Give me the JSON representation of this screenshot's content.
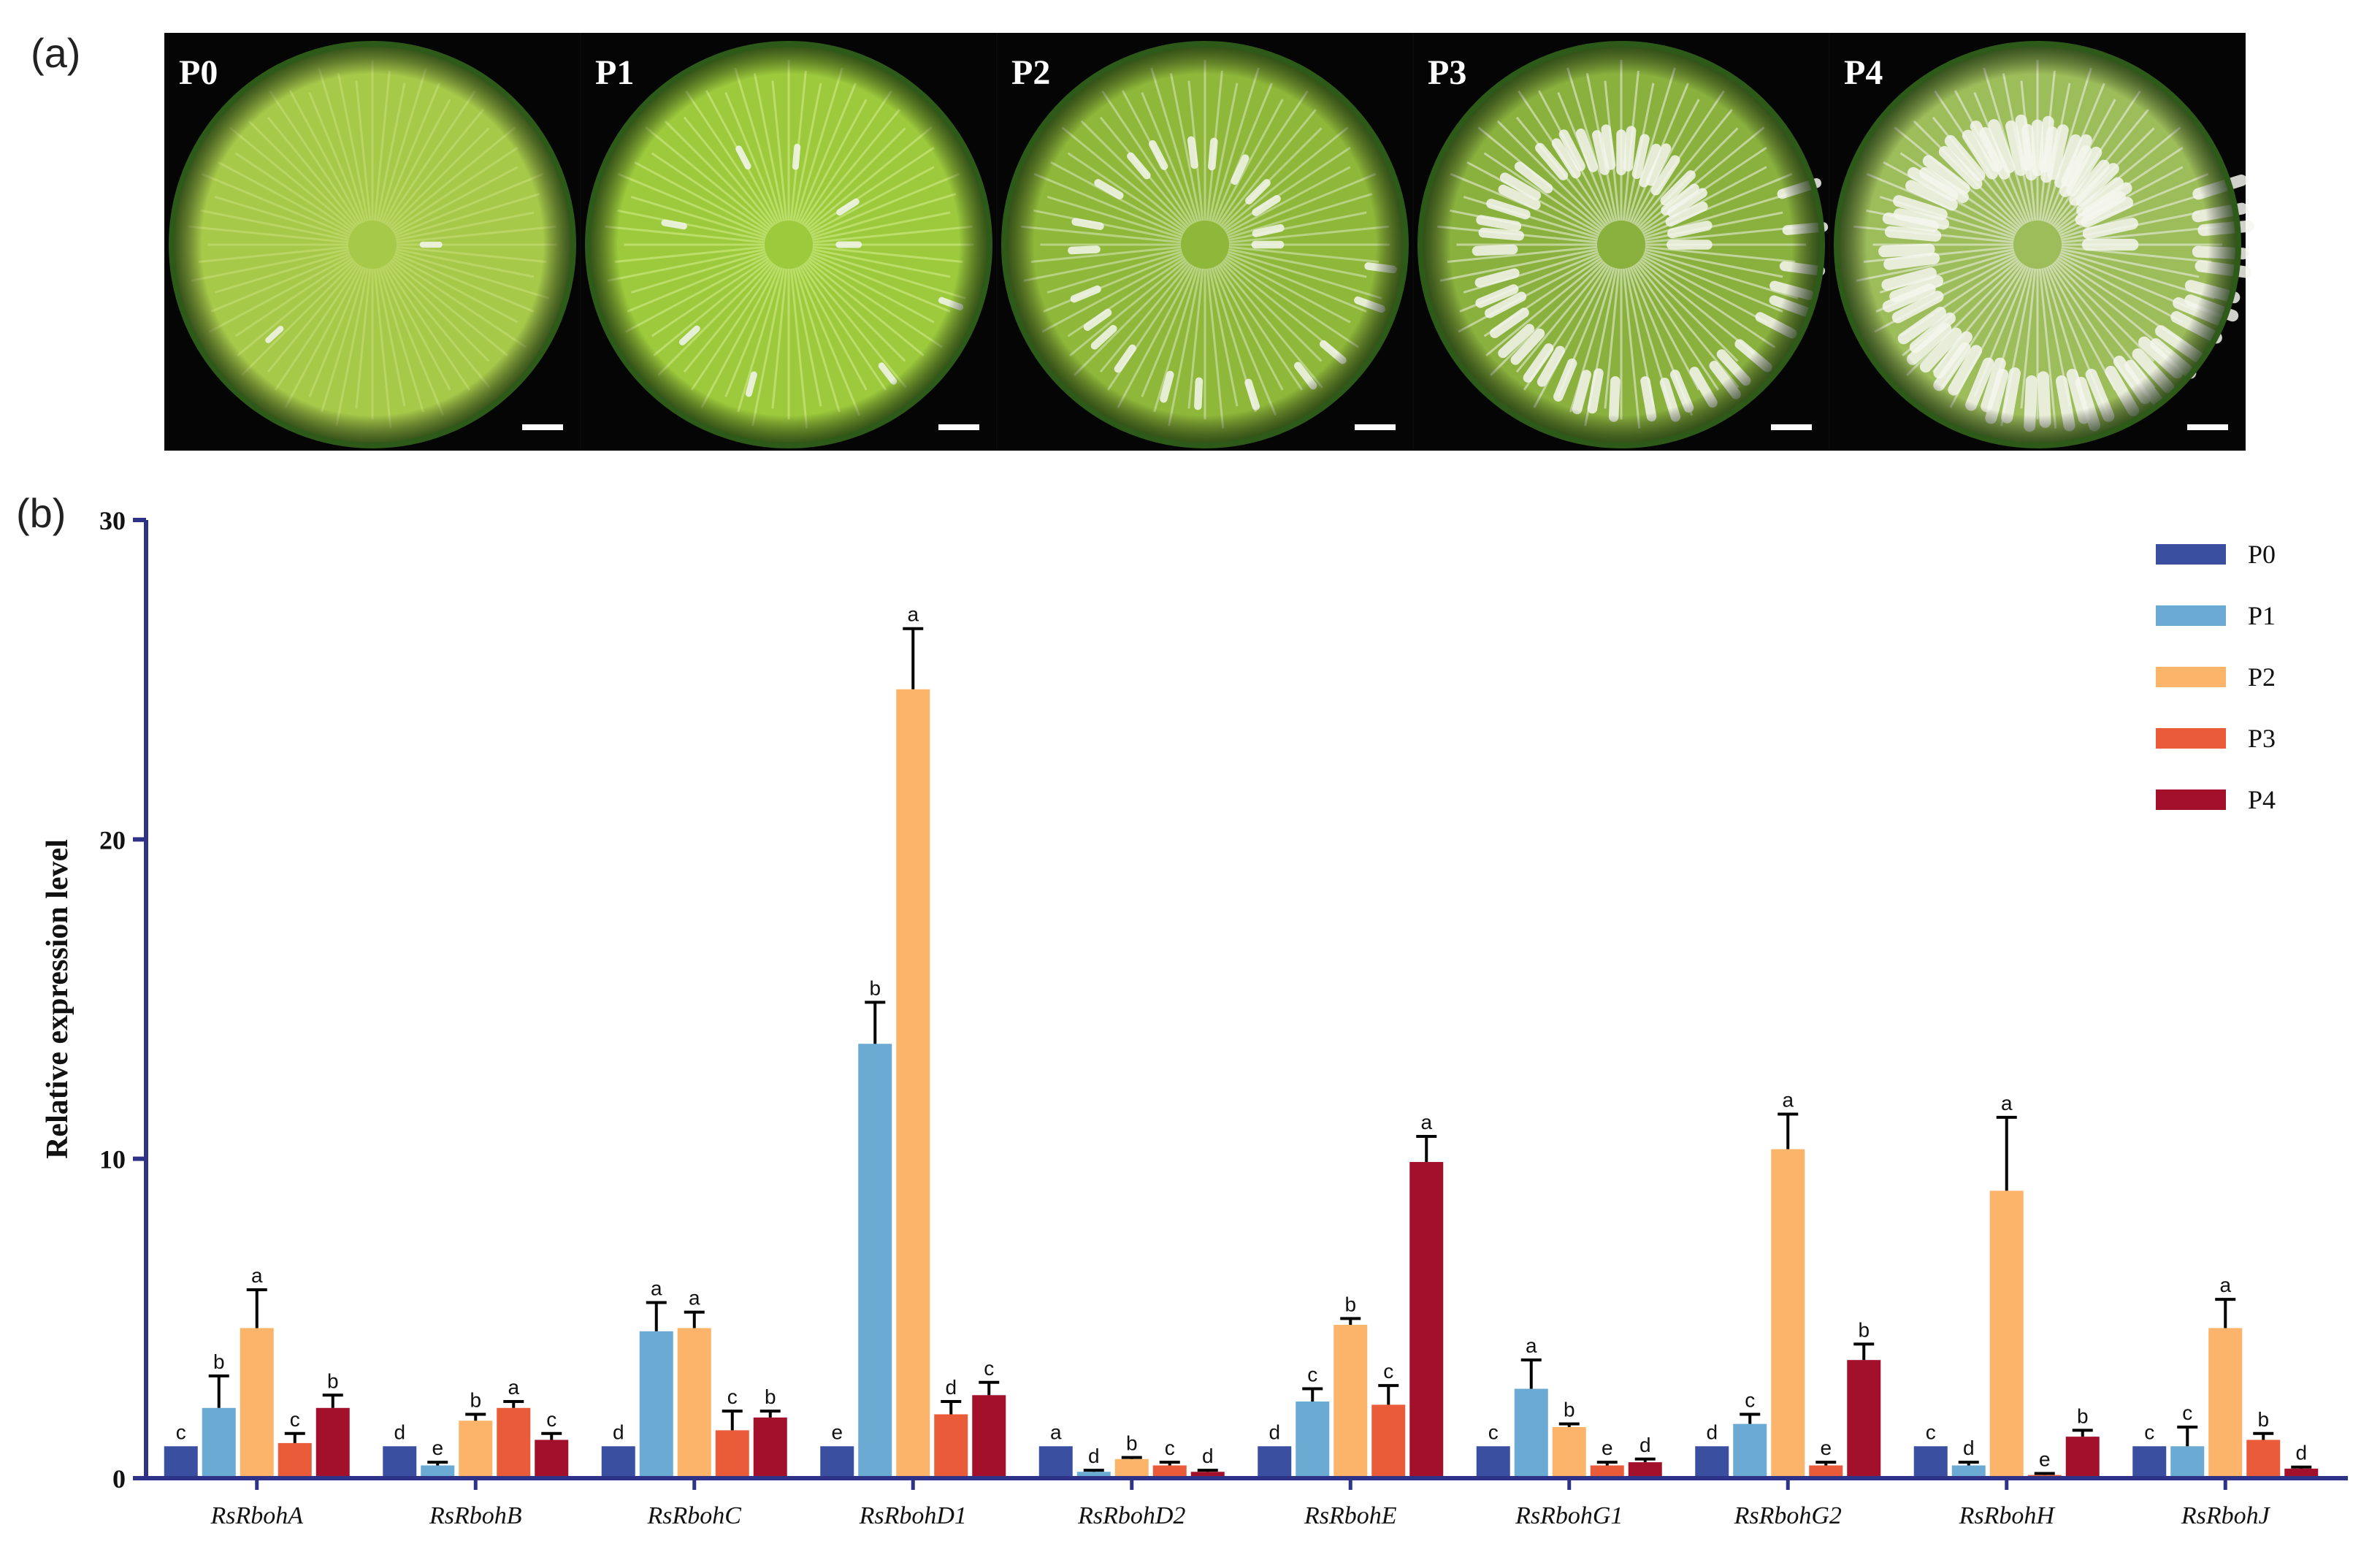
{
  "panel_a": {
    "label": "(a)",
    "photos": [
      {
        "label": "P0",
        "base": "#a6c94a",
        "accent": "#c8df7a",
        "white": 0.02
      },
      {
        "label": "P1",
        "base": "#9cca3c",
        "accent": "#d6ec8e",
        "white": 0.1
      },
      {
        "label": "P2",
        "base": "#8fb83a",
        "accent": "#d8e8c0",
        "white": 0.25
      },
      {
        "label": "P3",
        "base": "#8ab13e",
        "accent": "#eef2e6",
        "white": 0.55
      },
      {
        "label": "P4",
        "base": "#9dbd5a",
        "accent": "#f0f2ec",
        "white": 0.8
      }
    ]
  },
  "panel_b": {
    "label": "(b)"
  },
  "chart_data": {
    "type": "bar",
    "ylabel": "Relative expression level",
    "xlabel": "",
    "ylim": [
      0,
      30
    ],
    "yticks": [
      "0",
      "10",
      "20",
      "30"
    ],
    "legend_position": "top-right",
    "categories": [
      "RsRbohA",
      "RsRbohB",
      "RsRbohC",
      "RsRbohD1",
      "RsRbohD2",
      "RsRbohE",
      "RsRbohG1",
      "RsRbohG2",
      "RsRbohH",
      "RsRbohJ"
    ],
    "series": [
      {
        "name": "P0",
        "color": "#3a4fa0",
        "values": [
          1.0,
          1.0,
          1.0,
          1.0,
          1.0,
          1.0,
          1.0,
          1.0,
          1.0,
          1.0
        ],
        "errors": [
          0,
          0,
          0,
          0,
          0,
          0,
          0,
          0,
          0,
          0
        ],
        "letters": [
          "c",
          "d",
          "d",
          "e",
          "a",
          "d",
          "c",
          "d",
          "c",
          "c"
        ]
      },
      {
        "name": "P1",
        "color": "#6baad2",
        "values": [
          2.2,
          0.4,
          4.6,
          13.6,
          0.2,
          2.4,
          2.8,
          1.7,
          0.4,
          1.0
        ],
        "errors": [
          1.0,
          0.1,
          0.9,
          1.3,
          0.05,
          0.4,
          0.9,
          0.3,
          0.1,
          0.6
        ],
        "letters": [
          "b",
          "e",
          "a",
          "b",
          "d",
          "c",
          "a",
          "c",
          "d",
          "c"
        ]
      },
      {
        "name": "P2",
        "color": "#fbb469",
        "values": [
          4.7,
          1.8,
          4.7,
          24.7,
          0.6,
          4.8,
          1.6,
          10.3,
          9.0,
          4.7
        ],
        "errors": [
          1.2,
          0.2,
          0.5,
          1.9,
          0.05,
          0.2,
          0.1,
          1.1,
          2.3,
          0.9
        ],
        "letters": [
          "a",
          "b",
          "a",
          "a",
          "b",
          "b",
          "b",
          "a",
          "a",
          "a"
        ]
      },
      {
        "name": "P3",
        "color": "#ea5b3a",
        "values": [
          1.1,
          2.2,
          1.5,
          2.0,
          0.4,
          2.3,
          0.4,
          0.4,
          0.1,
          1.2
        ],
        "errors": [
          0.3,
          0.2,
          0.6,
          0.4,
          0.1,
          0.6,
          0.1,
          0.1,
          0.05,
          0.2
        ],
        "letters": [
          "c",
          "a",
          "c",
          "d",
          "c",
          "c",
          "e",
          "e",
          "e",
          "b"
        ]
      },
      {
        "name": "P4",
        "color": "#a3102c",
        "values": [
          2.2,
          1.2,
          1.9,
          2.6,
          0.2,
          9.9,
          0.5,
          3.7,
          1.3,
          0.3
        ],
        "errors": [
          0.4,
          0.2,
          0.2,
          0.4,
          0.05,
          0.8,
          0.1,
          0.5,
          0.2,
          0.05
        ],
        "letters": [
          "b",
          "c",
          "b",
          "c",
          "d",
          "a",
          "d",
          "b",
          "b",
          "d"
        ]
      }
    ]
  }
}
